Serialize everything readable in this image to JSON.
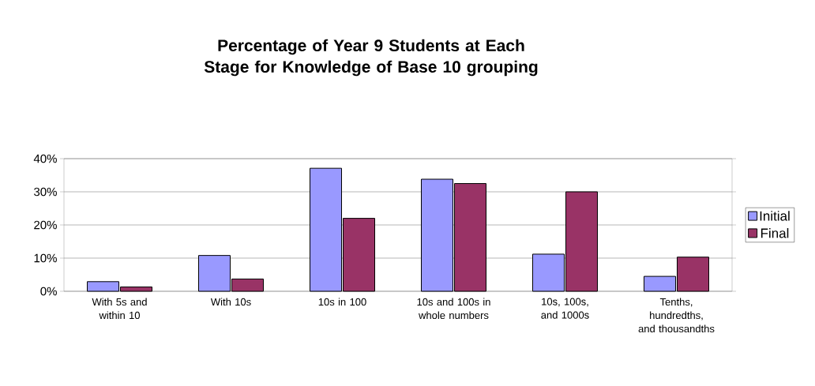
{
  "chart_data": {
    "type": "bar",
    "title": "Percentage of Year 9 Students at Each Stage for Knowledge of Base 10 grouping",
    "categories": [
      "With 5s and within 10",
      "With 10s",
      "10s in 100",
      "10s and 100s in whole numbers",
      "10s, 100s, and 1000s",
      "Tenths, hundredths, and thousandths"
    ],
    "series": [
      {
        "name": "Initial",
        "color": "#9999ff",
        "values": [
          2.9,
          10.8,
          37.1,
          33.8,
          11.2,
          4.5
        ]
      },
      {
        "name": "Final",
        "color": "#993366",
        "values": [
          1.3,
          3.7,
          22.0,
          32.5,
          30.0,
          10.3
        ]
      }
    ],
    "ylim": [
      0,
      40
    ],
    "yticks": [
      {
        "value": 0,
        "label": "0%"
      },
      {
        "value": 10,
        "label": "10%"
      },
      {
        "value": 20,
        "label": "20%"
      },
      {
        "value": 30,
        "label": "30%"
      },
      {
        "value": 40,
        "label": "40%"
      }
    ],
    "grid": "y",
    "legend": "right"
  }
}
